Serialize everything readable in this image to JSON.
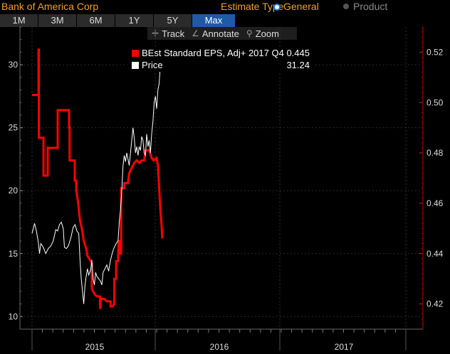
{
  "header": {
    "company": "Bank of America Corp",
    "estimate_type_label": "Estimate Type",
    "options": [
      {
        "label": "General",
        "selected": true
      },
      {
        "label": "Product",
        "selected": false
      }
    ]
  },
  "tabs": [
    {
      "label": "1M",
      "active": false
    },
    {
      "label": "3M",
      "active": false
    },
    {
      "label": "6M",
      "active": false
    },
    {
      "label": "1Y",
      "active": false
    },
    {
      "label": "5Y",
      "active": false
    },
    {
      "label": "Max",
      "active": true
    }
  ],
  "toolbar": {
    "track": "Track",
    "annotate": "Annotate",
    "zoom": "Zoom"
  },
  "legend": [
    {
      "label": "BEst Standard EPS, Adj+ 2017 Q4",
      "value": "0.445",
      "color": "#ff0000"
    },
    {
      "label": "Price",
      "value": "31.24",
      "color": "#ffffff"
    }
  ],
  "chart_data": {
    "type": "line",
    "x_labels": [
      "2015",
      "2016",
      "2017"
    ],
    "y_left": {
      "ticks": [
        10,
        15,
        20,
        25,
        30
      ],
      "range": [
        9,
        33
      ]
    },
    "y_right": {
      "ticks": [
        0.42,
        0.44,
        0.46,
        0.48,
        0.5,
        0.52
      ],
      "range": [
        0.41,
        0.53
      ]
    },
    "series": [
      {
        "name": "BEst Standard EPS, Adj+ 2017 Q4",
        "axis": "right",
        "color": "#ff0000",
        "points": [
          [
            0.0,
            0.503
          ],
          [
            0.052,
            0.503
          ],
          [
            0.052,
            0.521
          ],
          [
            0.054,
            0.521
          ],
          [
            0.054,
            0.486
          ],
          [
            0.092,
            0.486
          ],
          [
            0.092,
            0.471
          ],
          [
            0.126,
            0.471
          ],
          [
            0.126,
            0.482
          ],
          [
            0.206,
            0.482
          ],
          [
            0.206,
            0.497
          ],
          [
            0.297,
            0.497
          ],
          [
            0.297,
            0.49
          ],
          [
            0.302,
            0.49
          ],
          [
            0.302,
            0.477
          ],
          [
            0.343,
            0.477
          ],
          [
            0.343,
            0.469
          ],
          [
            0.355,
            0.469
          ],
          [
            0.355,
            0.465
          ],
          [
            0.37,
            0.46
          ],
          [
            0.385,
            0.453
          ],
          [
            0.4,
            0.45
          ],
          [
            0.415,
            0.445
          ],
          [
            0.435,
            0.442
          ],
          [
            0.445,
            0.439
          ],
          [
            0.46,
            0.438
          ],
          [
            0.48,
            0.436
          ],
          [
            0.48,
            0.426
          ],
          [
            0.5,
            0.424
          ],
          [
            0.52,
            0.423
          ],
          [
            0.545,
            0.423
          ],
          [
            0.545,
            0.42
          ],
          [
            0.548,
            0.418
          ],
          [
            0.552,
            0.422
          ],
          [
            0.58,
            0.422
          ],
          [
            0.6,
            0.421
          ],
          [
            0.63,
            0.421
          ],
          [
            0.63,
            0.419
          ],
          [
            0.645,
            0.419
          ],
          [
            0.66,
            0.42
          ],
          [
            0.66,
            0.43
          ],
          [
            0.675,
            0.43
          ],
          [
            0.675,
            0.437
          ],
          [
            0.69,
            0.437
          ],
          [
            0.695,
            0.445
          ],
          [
            0.705,
            0.445
          ],
          [
            0.705,
            0.44
          ],
          [
            0.715,
            0.44
          ],
          [
            0.715,
            0.466
          ],
          [
            0.74,
            0.466
          ],
          [
            0.74,
            0.468
          ],
          [
            0.77,
            0.468
          ],
          [
            0.78,
            0.472
          ],
          [
            0.8,
            0.474
          ],
          [
            0.82,
            0.476
          ],
          [
            0.84,
            0.477
          ],
          [
            0.86,
            0.476
          ],
          [
            0.88,
            0.477
          ],
          [
            0.9,
            0.477
          ],
          [
            0.91,
            0.481
          ],
          [
            0.94,
            0.481
          ],
          [
            0.96,
            0.478
          ],
          [
            0.975,
            0.477
          ],
          [
            1.0,
            0.478
          ],
          [
            1.01,
            0.475
          ],
          [
            1.02,
            0.466
          ],
          [
            1.03,
            0.457
          ],
          [
            1.04,
            0.451
          ],
          [
            1.045,
            0.446
          ]
        ]
      },
      {
        "name": "Price",
        "axis": "left",
        "color": "#ffffff",
        "points": [
          [
            0.0,
            16.6
          ],
          [
            0.02,
            17.4
          ],
          [
            0.035,
            16.8
          ],
          [
            0.05,
            15.9
          ],
          [
            0.06,
            15.0
          ],
          [
            0.07,
            15.8
          ],
          [
            0.09,
            15.5
          ],
          [
            0.11,
            15.0
          ],
          [
            0.13,
            15.4
          ],
          [
            0.15,
            15.6
          ],
          [
            0.17,
            16.0
          ],
          [
            0.19,
            16.9
          ],
          [
            0.205,
            16.8
          ],
          [
            0.22,
            17.3
          ],
          [
            0.235,
            17.5
          ],
          [
            0.25,
            17.0
          ],
          [
            0.26,
            15.5
          ],
          [
            0.275,
            15.4
          ],
          [
            0.29,
            15.6
          ],
          [
            0.31,
            16.2
          ],
          [
            0.33,
            17.1
          ],
          [
            0.345,
            17.3
          ],
          [
            0.36,
            16.8
          ],
          [
            0.375,
            16.6
          ],
          [
            0.385,
            14.5
          ],
          [
            0.395,
            13.0
          ],
          [
            0.405,
            12.0
          ],
          [
            0.415,
            11.0
          ],
          [
            0.425,
            12.5
          ],
          [
            0.435,
            13.2
          ],
          [
            0.445,
            13.8
          ],
          [
            0.455,
            13.3
          ],
          [
            0.47,
            13.7
          ],
          [
            0.48,
            14.5
          ],
          [
            0.49,
            13.0
          ],
          [
            0.5,
            12.5
          ],
          [
            0.51,
            13.5
          ],
          [
            0.52,
            13.2
          ],
          [
            0.535,
            13.0
          ],
          [
            0.55,
            12.8
          ],
          [
            0.56,
            12.5
          ],
          [
            0.57,
            13.5
          ],
          [
            0.585,
            13.8
          ],
          [
            0.6,
            14.1
          ],
          [
            0.615,
            13.6
          ],
          [
            0.63,
            14.5
          ],
          [
            0.645,
            15.1
          ],
          [
            0.66,
            15.5
          ],
          [
            0.675,
            15.8
          ],
          [
            0.69,
            16.0
          ],
          [
            0.7,
            17.5
          ],
          [
            0.71,
            18.5
          ],
          [
            0.72,
            20.0
          ],
          [
            0.73,
            22.0
          ],
          [
            0.74,
            22.8
          ],
          [
            0.75,
            22.3
          ],
          [
            0.76,
            23.0
          ],
          [
            0.77,
            22.5
          ],
          [
            0.78,
            22.0
          ],
          [
            0.79,
            23.0
          ],
          [
            0.8,
            24.0
          ],
          [
            0.81,
            25.0
          ],
          [
            0.82,
            24.2
          ],
          [
            0.83,
            23.0
          ],
          [
            0.84,
            23.5
          ],
          [
            0.85,
            22.8
          ],
          [
            0.86,
            23.5
          ],
          [
            0.87,
            23.2
          ],
          [
            0.88,
            24.3
          ],
          [
            0.89,
            24.0
          ],
          [
            0.9,
            23.0
          ],
          [
            0.91,
            22.8
          ],
          [
            0.92,
            24.5
          ],
          [
            0.93,
            23.5
          ],
          [
            0.94,
            24.0
          ],
          [
            0.95,
            23.0
          ],
          [
            0.96,
            24.5
          ],
          [
            0.97,
            25.5
          ],
          [
            0.98,
            27.0
          ],
          [
            0.99,
            27.5
          ],
          [
            1.0,
            26.5
          ],
          [
            1.01,
            28.0
          ],
          [
            1.02,
            28.5
          ],
          [
            1.03,
            30.0
          ],
          [
            1.04,
            30.5
          ],
          [
            1.05,
            31.24
          ]
        ]
      }
    ]
  }
}
